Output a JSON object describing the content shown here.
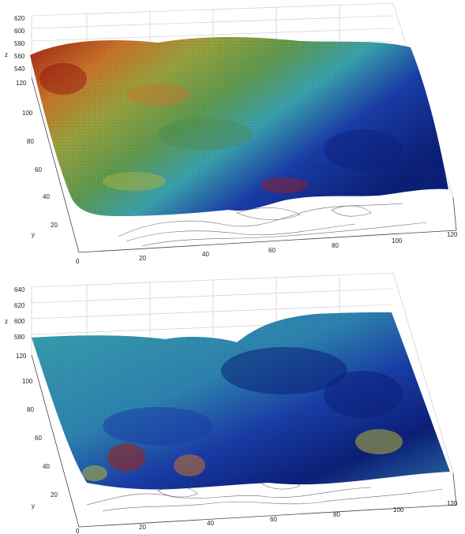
{
  "chart_data": [
    {
      "type": "surface",
      "title": "",
      "xlabel": "",
      "ylabel": "y",
      "zlabel": "z",
      "xlim": [
        0,
        120
      ],
      "ylim": [
        0,
        120
      ],
      "zlim": [
        540,
        620
      ],
      "x_ticks": [
        "0",
        "20",
        "40",
        "60",
        "80",
        "100",
        "120"
      ],
      "y_ticks": [
        "20",
        "40",
        "60",
        "80",
        "100",
        "120"
      ],
      "z_ticks": [
        "540",
        "560",
        "580",
        "600",
        "620"
      ],
      "colormap": "jet",
      "grid": true,
      "contour_projection": true
    },
    {
      "type": "surface",
      "title": "",
      "xlabel": "",
      "ylabel": "y",
      "zlabel": "z",
      "xlim": [
        0,
        120
      ],
      "ylim": [
        0,
        120
      ],
      "zlim": [
        580,
        640
      ],
      "x_ticks": [
        "0",
        "20",
        "40",
        "60",
        "80",
        "100",
        "120"
      ],
      "y_ticks": [
        "20",
        "40",
        "60",
        "80",
        "100",
        "120"
      ],
      "z_ticks": [
        "580",
        "600",
        "620",
        "640"
      ],
      "colormap": "jet",
      "grid": true,
      "contour_projection": true
    }
  ],
  "colors": {
    "red": "#a32012",
    "orange": "#c9742a",
    "yellow": "#b7b43a",
    "green": "#5f9a4f",
    "cyan": "#3aa2ae",
    "blue": "#1a3da8",
    "navy": "#0b1f78"
  }
}
